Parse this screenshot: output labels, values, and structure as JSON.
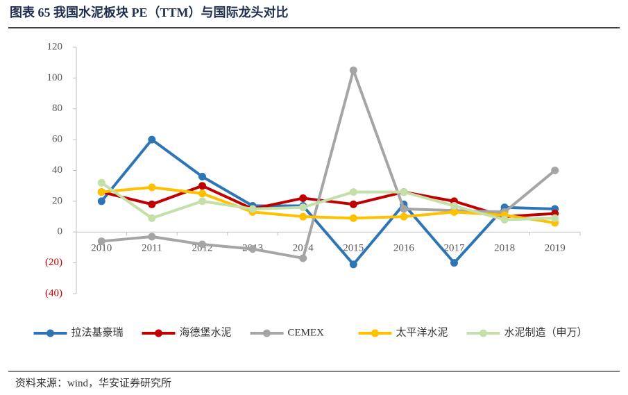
{
  "chart_data": {
    "type": "line",
    "title": "图表 65  我国水泥板块 PE（TTM）与国际龙头对比",
    "source": "资料来源：wind，华安证券研究所",
    "categories": [
      "2010",
      "2011",
      "2012",
      "2013",
      "2014",
      "2015",
      "2016",
      "2017",
      "2018",
      "2019"
    ],
    "series": [
      {
        "name": "拉法基豪瑞",
        "color": "#2e75b6",
        "values": [
          20,
          60,
          36,
          17,
          17,
          -21,
          18,
          -20,
          16,
          15
        ]
      },
      {
        "name": "海德堡水泥",
        "color": "#c00000",
        "values": [
          26,
          18,
          30,
          15,
          22,
          18,
          26,
          20,
          10,
          12
        ]
      },
      {
        "name": "CEMEX",
        "color": "#a5a5a5",
        "values": [
          -6,
          -3,
          -8,
          -11,
          -17,
          105,
          15,
          14,
          13,
          40
        ]
      },
      {
        "name": "太平洋水泥",
        "color": "#ffc000",
        "values": [
          26,
          29,
          25,
          13,
          10,
          9,
          10,
          13,
          11,
          6
        ]
      },
      {
        "name": "水泥制造（申万）",
        "color": "#c5dfa8",
        "values": [
          32,
          9,
          20,
          15,
          16,
          26,
          26,
          17,
          8,
          9
        ]
      }
    ],
    "ylim": [
      -40,
      120
    ],
    "yticks": [
      {
        "value": -40,
        "label": "(40)"
      },
      {
        "value": -20,
        "label": "(20)"
      },
      0,
      20,
      40,
      60,
      80,
      100,
      120
    ],
    "negative_tick_color": "#c00000",
    "grid": false,
    "legend": "bottom"
  }
}
